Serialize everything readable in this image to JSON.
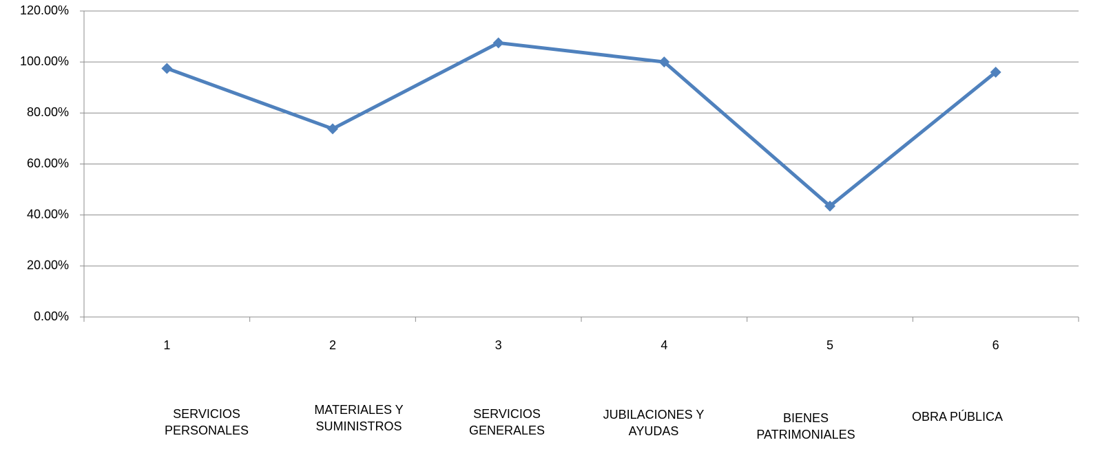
{
  "chart_data": {
    "type": "line",
    "categories": [
      "1",
      "2",
      "3",
      "4",
      "5",
      "6"
    ],
    "values": [
      97.5,
      73.8,
      107.5,
      100,
      43.5,
      96
    ],
    "color": "#4f81bd",
    "ylim": [
      0,
      120
    ],
    "yticks": [
      {
        "value": 0,
        "label": "0.00%"
      },
      {
        "value": 20,
        "label": "20.00%"
      },
      {
        "value": 40,
        "label": "40.00%"
      },
      {
        "value": 60,
        "label": "60.00%"
      },
      {
        "value": 80,
        "label": "80.00%"
      },
      {
        "value": 100,
        "label": "100.00%"
      },
      {
        "value": 120,
        "label": "120.00%"
      }
    ],
    "grid": true,
    "category_descriptions": [
      "SERVICIOS\nPERSONALES",
      "MATERIALES Y\nSUMINISTROS",
      "SERVICIOS\nGENERALES",
      "JUBILACIONES Y\nAYUDAS",
      "BIENES\nPATRIMONIALES",
      "OBRA PÚBLICA"
    ]
  }
}
